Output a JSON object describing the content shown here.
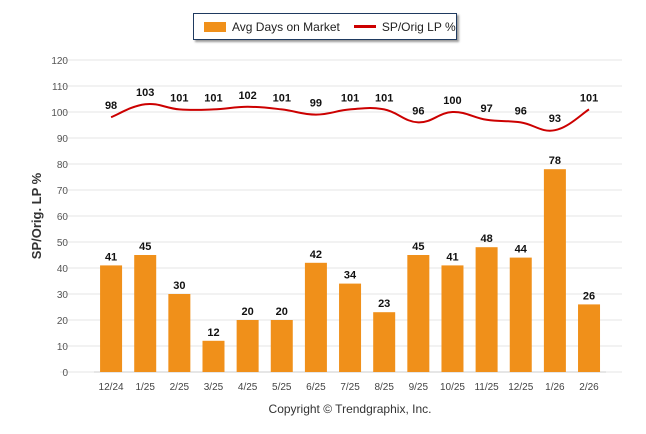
{
  "chart_data": {
    "type": "bar",
    "categories": [
      "12/24",
      "1/25",
      "2/25",
      "3/25",
      "4/25",
      "5/25",
      "6/25",
      "7/25",
      "8/25",
      "9/25",
      "10/25",
      "11/25",
      "12/25",
      "1/26",
      "2/26"
    ],
    "series": [
      {
        "name": "Avg Days on Market",
        "type": "bar",
        "color": "#f0901a",
        "values": [
          41,
          45,
          30,
          12,
          20,
          20,
          42,
          34,
          23,
          45,
          41,
          48,
          44,
          78,
          26
        ]
      },
      {
        "name": "SP/Orig LP %",
        "type": "line",
        "color": "#cc0000",
        "values": [
          98,
          103,
          101,
          101,
          102,
          101,
          99,
          101,
          101,
          96,
          100,
          97,
          96,
          93,
          101
        ]
      }
    ],
    "ylabel": "SP/Orig. LP %",
    "xlabel": "",
    "ylim": [
      0,
      120
    ],
    "yticks": [
      0,
      10,
      20,
      30,
      40,
      50,
      60,
      70,
      80,
      90,
      100,
      110,
      120
    ],
    "grid": true,
    "legend": "top-center"
  },
  "footer": "Copyright © Trendgraphix, Inc."
}
